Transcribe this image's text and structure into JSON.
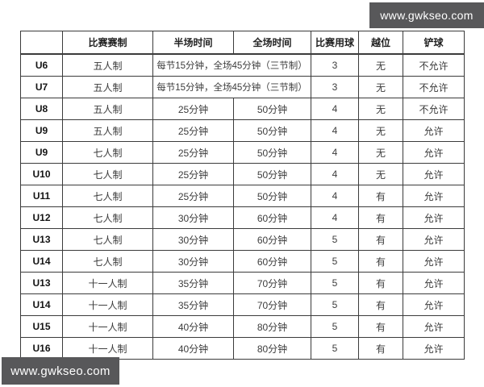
{
  "watermarks": {
    "top_right": "www.gwkseo.com",
    "bottom_left": "www.gwkseo.com"
  },
  "colors": {
    "watermark_bg": "#58585a",
    "watermark_text": "#ffffff",
    "table_border": "#3b3b3b",
    "header_text": "#1f1f1f",
    "cell_text": "#3c3c3c",
    "background": "#ffffff"
  },
  "table": {
    "headers": [
      "",
      "比赛赛制",
      "半场时间",
      "全场时间",
      "比赛用球",
      "越位",
      "铲球"
    ],
    "rows": [
      {
        "age": "U6",
        "format": "五人制",
        "half_time": "每节15分钟，全场45分钟（三节制）",
        "full_time": "",
        "time_merged": true,
        "ball": "3",
        "offside": "无",
        "tackle": "不允许"
      },
      {
        "age": "U7",
        "format": "五人制",
        "half_time": "每节15分钟，全场45分钟（三节制）",
        "full_time": "",
        "time_merged": true,
        "ball": "3",
        "offside": "无",
        "tackle": "不允许"
      },
      {
        "age": "U8",
        "format": "五人制",
        "half_time": "25分钟",
        "full_time": "50分钟",
        "time_merged": false,
        "ball": "4",
        "offside": "无",
        "tackle": "不允许"
      },
      {
        "age": "U9",
        "format": "五人制",
        "half_time": "25分钟",
        "full_time": "50分钟",
        "time_merged": false,
        "ball": "4",
        "offside": "无",
        "tackle": "允许"
      },
      {
        "age": "U9",
        "format": "七人制",
        "half_time": "25分钟",
        "full_time": "50分钟",
        "time_merged": false,
        "ball": "4",
        "offside": "无",
        "tackle": "允许"
      },
      {
        "age": "U10",
        "format": "七人制",
        "half_time": "25分钟",
        "full_time": "50分钟",
        "time_merged": false,
        "ball": "4",
        "offside": "无",
        "tackle": "允许"
      },
      {
        "age": "U11",
        "format": "七人制",
        "half_time": "25分钟",
        "full_time": "50分钟",
        "time_merged": false,
        "ball": "4",
        "offside": "有",
        "tackle": "允许"
      },
      {
        "age": "U12",
        "format": "七人制",
        "half_time": "30分钟",
        "full_time": "60分钟",
        "time_merged": false,
        "ball": "4",
        "offside": "有",
        "tackle": "允许"
      },
      {
        "age": "U13",
        "format": "七人制",
        "half_time": "30分钟",
        "full_time": "60分钟",
        "time_merged": false,
        "ball": "5",
        "offside": "有",
        "tackle": "允许"
      },
      {
        "age": "U14",
        "format": "七人制",
        "half_time": "30分钟",
        "full_time": "60分钟",
        "time_merged": false,
        "ball": "5",
        "offside": "有",
        "tackle": "允许"
      },
      {
        "age": "U13",
        "format": "十一人制",
        "half_time": "35分钟",
        "full_time": "70分钟",
        "time_merged": false,
        "ball": "5",
        "offside": "有",
        "tackle": "允许"
      },
      {
        "age": "U14",
        "format": "十一人制",
        "half_time": "35分钟",
        "full_time": "70分钟",
        "time_merged": false,
        "ball": "5",
        "offside": "有",
        "tackle": "允许"
      },
      {
        "age": "U15",
        "format": "十一人制",
        "half_time": "40分钟",
        "full_time": "80分钟",
        "time_merged": false,
        "ball": "5",
        "offside": "有",
        "tackle": "允许"
      },
      {
        "age": "U16",
        "format": "十一人制",
        "half_time": "40分钟",
        "full_time": "80分钟",
        "time_merged": false,
        "ball": "5",
        "offside": "有",
        "tackle": "允许"
      }
    ]
  }
}
